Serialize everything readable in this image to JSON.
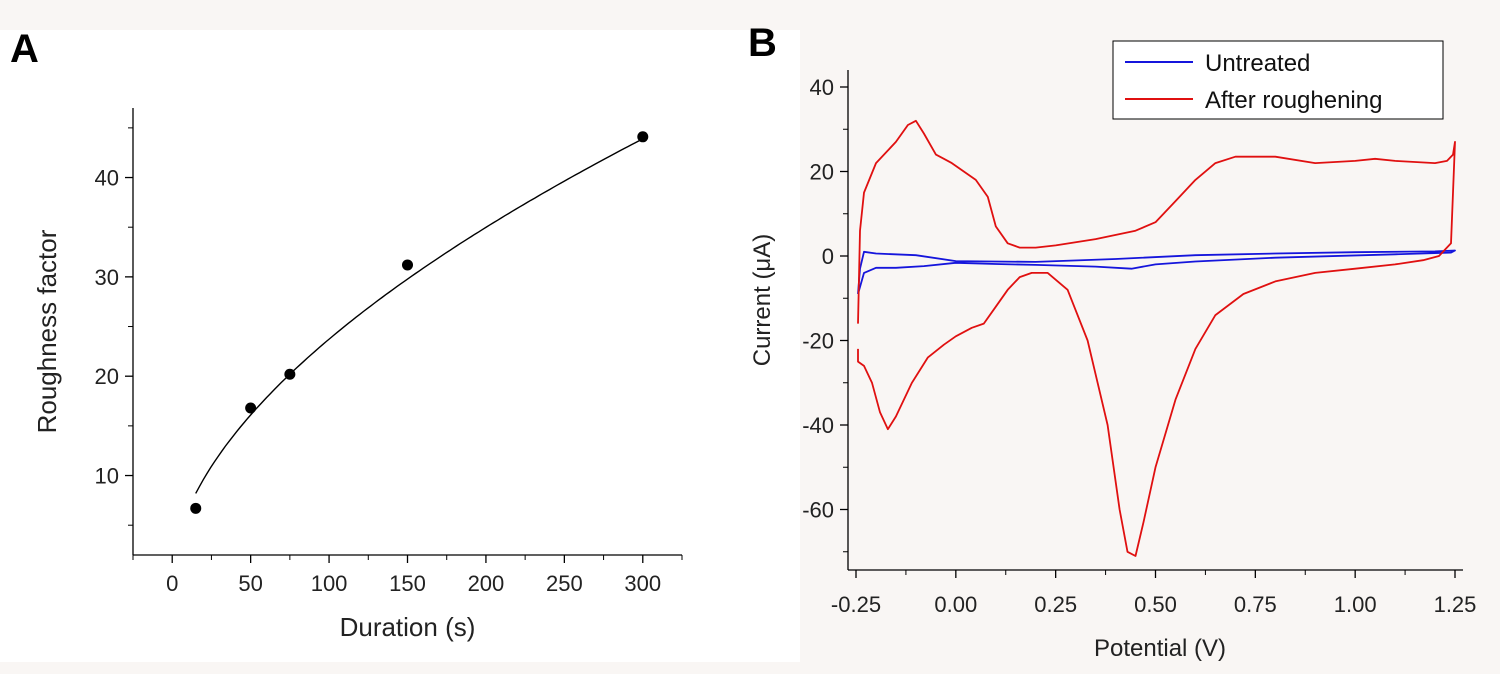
{
  "chart_data": [
    {
      "panel": "A",
      "type": "scatter",
      "title": "",
      "xlabel": "Duration (s)",
      "ylabel": "Roughness factor",
      "xlim": [
        -25,
        325
      ],
      "ylim": [
        2,
        47
      ],
      "xticks": [
        0,
        50,
        100,
        150,
        200,
        250,
        300
      ],
      "yticks": [
        10,
        20,
        30,
        40
      ],
      "x": [
        15,
        50,
        75,
        150,
        300
      ],
      "y": [
        6.7,
        16.8,
        20.2,
        31.2,
        44.1
      ],
      "fit": {
        "type": "power",
        "a": 1.8,
        "b": 0.56,
        "x_range": [
          15,
          300
        ]
      },
      "grid": false,
      "marker_color": "#000000",
      "line_color": "#000000"
    },
    {
      "panel": "B",
      "type": "line",
      "title": "",
      "xlabel": "Potential (V)",
      "ylabel": "Current (μA)",
      "xlim": [
        -0.25,
        1.25
      ],
      "ylim": [
        -72,
        44
      ],
      "xticks": [
        "-0.25",
        "0.00",
        "0.25",
        "0.50",
        "0.75",
        "1.00",
        "1.25"
      ],
      "yticks": [
        "40",
        "20",
        "0",
        "-20",
        "-40",
        "-60"
      ],
      "legend_position": "top-right",
      "grid": false,
      "series": [
        {
          "name": "Untreated",
          "color": "#1515dc",
          "x": [
            -0.245,
            -0.24,
            -0.23,
            -0.2,
            -0.1,
            0.0,
            0.2,
            0.4,
            0.6,
            0.8,
            1.0,
            1.2,
            1.25,
            1.24,
            1.1,
            0.8,
            0.6,
            0.5,
            0.44,
            0.35,
            0.2,
            0.1,
            0.0,
            -0.08,
            -0.15,
            -0.2,
            -0.23,
            -0.245
          ],
          "y": [
            -9,
            -3,
            1,
            0.6,
            0.2,
            -1.2,
            -1.4,
            -0.7,
            0.2,
            0.6,
            0.9,
            1.1,
            1.3,
            0.8,
            0.4,
            -0.4,
            -1.3,
            -2,
            -3,
            -2.5,
            -2.1,
            -1.9,
            -1.6,
            -2.4,
            -2.8,
            -2.8,
            -4,
            -9
          ]
        },
        {
          "name": "After roughening",
          "color": "#e01010",
          "x": [
            -0.245,
            -0.24,
            -0.23,
            -0.2,
            -0.15,
            -0.12,
            -0.1,
            -0.08,
            -0.05,
            -0.03,
            -0.01,
            0.02,
            0.05,
            0.08,
            0.1,
            0.13,
            0.16,
            0.2,
            0.25,
            0.35,
            0.45,
            0.5,
            0.55,
            0.6,
            0.65,
            0.7,
            0.8,
            0.9,
            1.0,
            1.05,
            1.1,
            1.2,
            1.23,
            1.245,
            1.25,
            1.24,
            1.21,
            1.17,
            1.1,
            1.0,
            0.9,
            0.8,
            0.72,
            0.65,
            0.6,
            0.55,
            0.5,
            0.47,
            0.45,
            0.43,
            0.41,
            0.38,
            0.33,
            0.28,
            0.23,
            0.19,
            0.16,
            0.13,
            0.1,
            0.07,
            0.04,
            0.0,
            -0.03,
            -0.07,
            -0.11,
            -0.15,
            -0.17,
            -0.19,
            -0.21,
            -0.23,
            -0.245,
            -0.245
          ],
          "y": [
            -16,
            6,
            15,
            22,
            27,
            31,
            32,
            29,
            24,
            23,
            22,
            20,
            18,
            14,
            7,
            3,
            2,
            2,
            2.5,
            4,
            6,
            8,
            13,
            18,
            22,
            23.5,
            23.5,
            22,
            22.5,
            23,
            22.5,
            22,
            22.5,
            24,
            27,
            3,
            0,
            -1,
            -2,
            -3,
            -4,
            -6,
            -9,
            -14,
            -22,
            -34,
            -50,
            -63,
            -71,
            -70,
            -60,
            -40,
            -20,
            -8,
            -4,
            -4,
            -5,
            -8,
            -12,
            -16,
            -17,
            -19,
            -21,
            -24,
            -30,
            -38,
            -41,
            -37,
            -30,
            -26,
            -25,
            -22
          ]
        }
      ]
    }
  ],
  "panels": {
    "a": {
      "letter": "A"
    },
    "b": {
      "letter": "B"
    }
  }
}
